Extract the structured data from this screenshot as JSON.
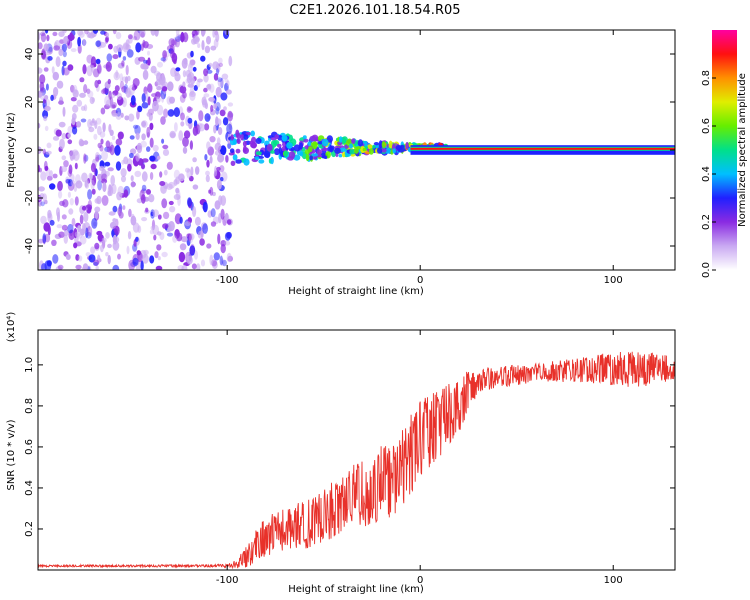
{
  "figure_title": "C2E1.2026.101.18.54.R05",
  "colors": {
    "snr_line": "#e8312a",
    "axis": "#000000",
    "colorbar": [
      "#ffffff",
      "#c9a9f2",
      "#8a2be2",
      "#2020ff",
      "#00bfff",
      "#00e08a",
      "#66ee00",
      "#e0ee00",
      "#ff9000",
      "#ff1010",
      "#ff00a0"
    ]
  },
  "chart_data": [
    {
      "type": "heatmap",
      "name": "spectrogram",
      "xlabel": "Height of straight line (km)",
      "ylabel": "Frequency (Hz)",
      "xlim": [
        -198,
        132
      ],
      "ylim": [
        -50,
        50
      ],
      "x_ticks": [
        -100,
        0,
        100
      ],
      "x_tick_labels": [
        "-100",
        "0",
        "100"
      ],
      "y_ticks": [
        -40,
        -20,
        0,
        20,
        40
      ],
      "y_tick_labels": [
        "-40",
        "-20",
        "0",
        "20",
        "40"
      ],
      "noise_region_x": [
        -198,
        -98
      ],
      "signal_band_hz": [
        -2,
        2
      ],
      "colorbar_label": "Normalized spectral amplitude",
      "colorbar_range": [
        0,
        1
      ],
      "colorbar_ticks": [
        0,
        0.2,
        0.4,
        0.6,
        0.8
      ],
      "colorbar_tick_labels": [
        "0.0",
        "0.2",
        "0.4",
        "0.6",
        "0.8"
      ]
    },
    {
      "type": "line",
      "name": "snr",
      "xlabel": "Height of straight line (km)",
      "ylabel": "SNR (10 * v/v)",
      "y_scale_label": "(x10⁴)",
      "xlim": [
        -198,
        132
      ],
      "ylim": [
        0,
        1.17
      ],
      "x_ticks": [
        -100,
        0,
        100
      ],
      "x_tick_labels": [
        "-100",
        "0",
        "100"
      ],
      "y_ticks": [
        0.2,
        0.4,
        0.6,
        0.8,
        1.0
      ],
      "y_tick_labels": [
        "0.2",
        "0.4",
        "0.6",
        "0.8",
        "1.0"
      ],
      "series": [
        {
          "name": "SNR",
          "x": [
            -198,
            -150,
            -110,
            -100,
            -95,
            -90,
            -85,
            -80,
            -75,
            -70,
            -65,
            -60,
            -55,
            -50,
            -45,
            -40,
            -35,
            -30,
            -25,
            -20,
            -15,
            -10,
            -5,
            0,
            5,
            10,
            15,
            20,
            25,
            30,
            40,
            50,
            60,
            70,
            80,
            90,
            100,
            110,
            120,
            132
          ],
          "y": [
            0.02,
            0.02,
            0.02,
            0.02,
            0.03,
            0.06,
            0.12,
            0.16,
            0.18,
            0.2,
            0.21,
            0.22,
            0.24,
            0.26,
            0.3,
            0.33,
            0.36,
            0.38,
            0.36,
            0.44,
            0.42,
            0.48,
            0.56,
            0.64,
            0.68,
            0.72,
            0.76,
            0.8,
            0.88,
            0.92,
            0.94,
            0.95,
            0.96,
            0.97,
            0.97,
            0.98,
            0.98,
            0.98,
            0.98,
            0.98
          ],
          "noise": [
            0.005,
            0.005,
            0.006,
            0.008,
            0.02,
            0.06,
            0.08,
            0.1,
            0.1,
            0.1,
            0.11,
            0.12,
            0.12,
            0.13,
            0.14,
            0.14,
            0.15,
            0.16,
            0.16,
            0.17,
            0.18,
            0.2,
            0.2,
            0.2,
            0.18,
            0.17,
            0.16,
            0.14,
            0.1,
            0.06,
            0.05,
            0.05,
            0.05,
            0.05,
            0.06,
            0.07,
            0.08,
            0.09,
            0.08,
            0.06
          ]
        }
      ]
    }
  ]
}
